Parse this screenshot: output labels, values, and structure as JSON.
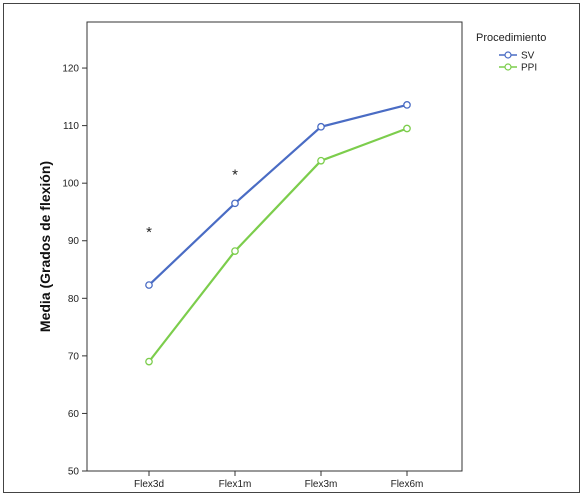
{
  "chart_data": {
    "type": "line",
    "title": "",
    "xlabel": "",
    "ylabel": "Media (Grados de flexión)",
    "categories": [
      "Flex3d",
      "Flex1m",
      "Flex3m",
      "Flex6m"
    ],
    "ylim": [
      50,
      128
    ],
    "yticks": [
      50,
      60,
      70,
      80,
      90,
      100,
      110,
      120
    ],
    "grid": false,
    "legend": {
      "title": "Procedimiento",
      "placement": "top-right outside"
    },
    "series": [
      {
        "name": "SV",
        "values": [
          82.3,
          96.5,
          109.8,
          113.6
        ],
        "color": "#4a6cc4"
      },
      {
        "name": "PPI",
        "values": [
          69.0,
          88.2,
          103.9,
          109.5
        ],
        "color": "#7ccd4c"
      }
    ],
    "annotations": [
      {
        "text": "*",
        "category": "Flex3d",
        "y": 92
      },
      {
        "text": "*",
        "category": "Flex1m",
        "y": 102
      }
    ]
  }
}
